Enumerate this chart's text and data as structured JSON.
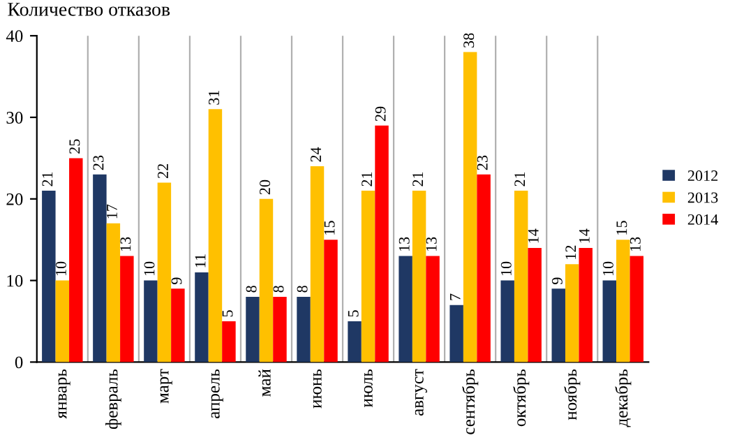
{
  "chart_data": {
    "type": "bar",
    "title": "Количество отказов",
    "categories": [
      "январь",
      "февраль",
      "март",
      "апрель",
      "май",
      "июнь",
      "июль",
      "август",
      "сентябрь",
      "октябрь",
      "ноябрь",
      "декабрь"
    ],
    "series": [
      {
        "name": "2012",
        "color": "#1f3864",
        "values": [
          21,
          23,
          10,
          11,
          8,
          8,
          5,
          13,
          7,
          10,
          9,
          10
        ]
      },
      {
        "name": "2013",
        "color": "#ffc000",
        "values": [
          10,
          17,
          22,
          31,
          20,
          24,
          21,
          21,
          38,
          21,
          12,
          15
        ]
      },
      {
        "name": "2014",
        "color": "#ff0000",
        "values": [
          25,
          13,
          9,
          5,
          8,
          15,
          29,
          13,
          23,
          14,
          14,
          13
        ]
      }
    ],
    "ylim": [
      0,
      40
    ],
    "yticks": [
      0,
      10,
      20,
      30,
      40
    ],
    "grid": "x",
    "legend": "right",
    "data_labels": true
  }
}
